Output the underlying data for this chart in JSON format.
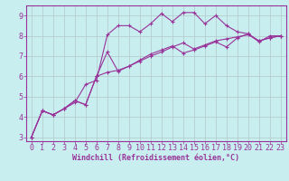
{
  "background_color": "#c8eef0",
  "plot_bg_color": "#c8eef0",
  "line_color": "#993399",
  "grid_color": "#b0c8c8",
  "xlabel": "Windchill (Refroidissement éolien,°C)",
  "xlim": [
    -0.5,
    23.5
  ],
  "ylim": [
    2.8,
    9.5
  ],
  "yticks": [
    3,
    4,
    5,
    6,
    7,
    8,
    9
  ],
  "xticks": [
    0,
    1,
    2,
    3,
    4,
    5,
    6,
    7,
    8,
    9,
    10,
    11,
    12,
    13,
    14,
    15,
    16,
    17,
    18,
    19,
    20,
    21,
    22,
    23
  ],
  "line1_x": [
    0,
    1,
    2,
    3,
    4,
    5,
    6,
    7,
    8,
    9,
    10,
    11,
    12,
    13,
    14,
    15,
    16,
    17,
    18,
    19,
    20,
    21,
    22,
    23
  ],
  "line1_y": [
    3.0,
    4.3,
    4.1,
    4.4,
    4.7,
    5.6,
    5.8,
    8.05,
    8.5,
    8.5,
    8.2,
    8.6,
    9.1,
    8.7,
    9.15,
    9.15,
    8.6,
    9.0,
    8.5,
    8.2,
    8.1,
    7.7,
    8.0,
    8.0
  ],
  "line2_x": [
    0,
    1,
    2,
    3,
    4,
    5,
    6,
    7,
    8,
    9,
    10,
    11,
    12,
    13,
    14,
    15,
    16,
    17,
    18,
    19,
    20,
    21,
    22,
    23
  ],
  "line2_y": [
    3.0,
    4.3,
    4.1,
    4.4,
    4.8,
    4.6,
    6.0,
    7.2,
    6.25,
    6.5,
    6.8,
    7.1,
    7.3,
    7.5,
    7.15,
    7.3,
    7.5,
    7.7,
    7.45,
    7.9,
    8.1,
    7.75,
    7.9,
    8.0
  ],
  "line3_x": [
    0,
    1,
    2,
    3,
    4,
    5,
    6,
    7,
    8,
    9,
    10,
    11,
    12,
    13,
    14,
    15,
    16,
    17,
    18,
    19,
    20,
    21,
    22,
    23
  ],
  "line3_y": [
    3.0,
    4.3,
    4.1,
    4.4,
    4.8,
    4.6,
    6.0,
    6.2,
    6.3,
    6.5,
    6.75,
    7.0,
    7.2,
    7.45,
    7.65,
    7.35,
    7.55,
    7.75,
    7.85,
    7.95,
    8.05,
    7.75,
    7.9,
    8.0
  ],
  "marker": "+",
  "markersize": 3,
  "linewidth": 0.8,
  "xlabel_fontsize": 6,
  "tick_fontsize": 6,
  "xlabel_color": "#993399",
  "tick_color": "#993399",
  "spine_color": "#993399"
}
